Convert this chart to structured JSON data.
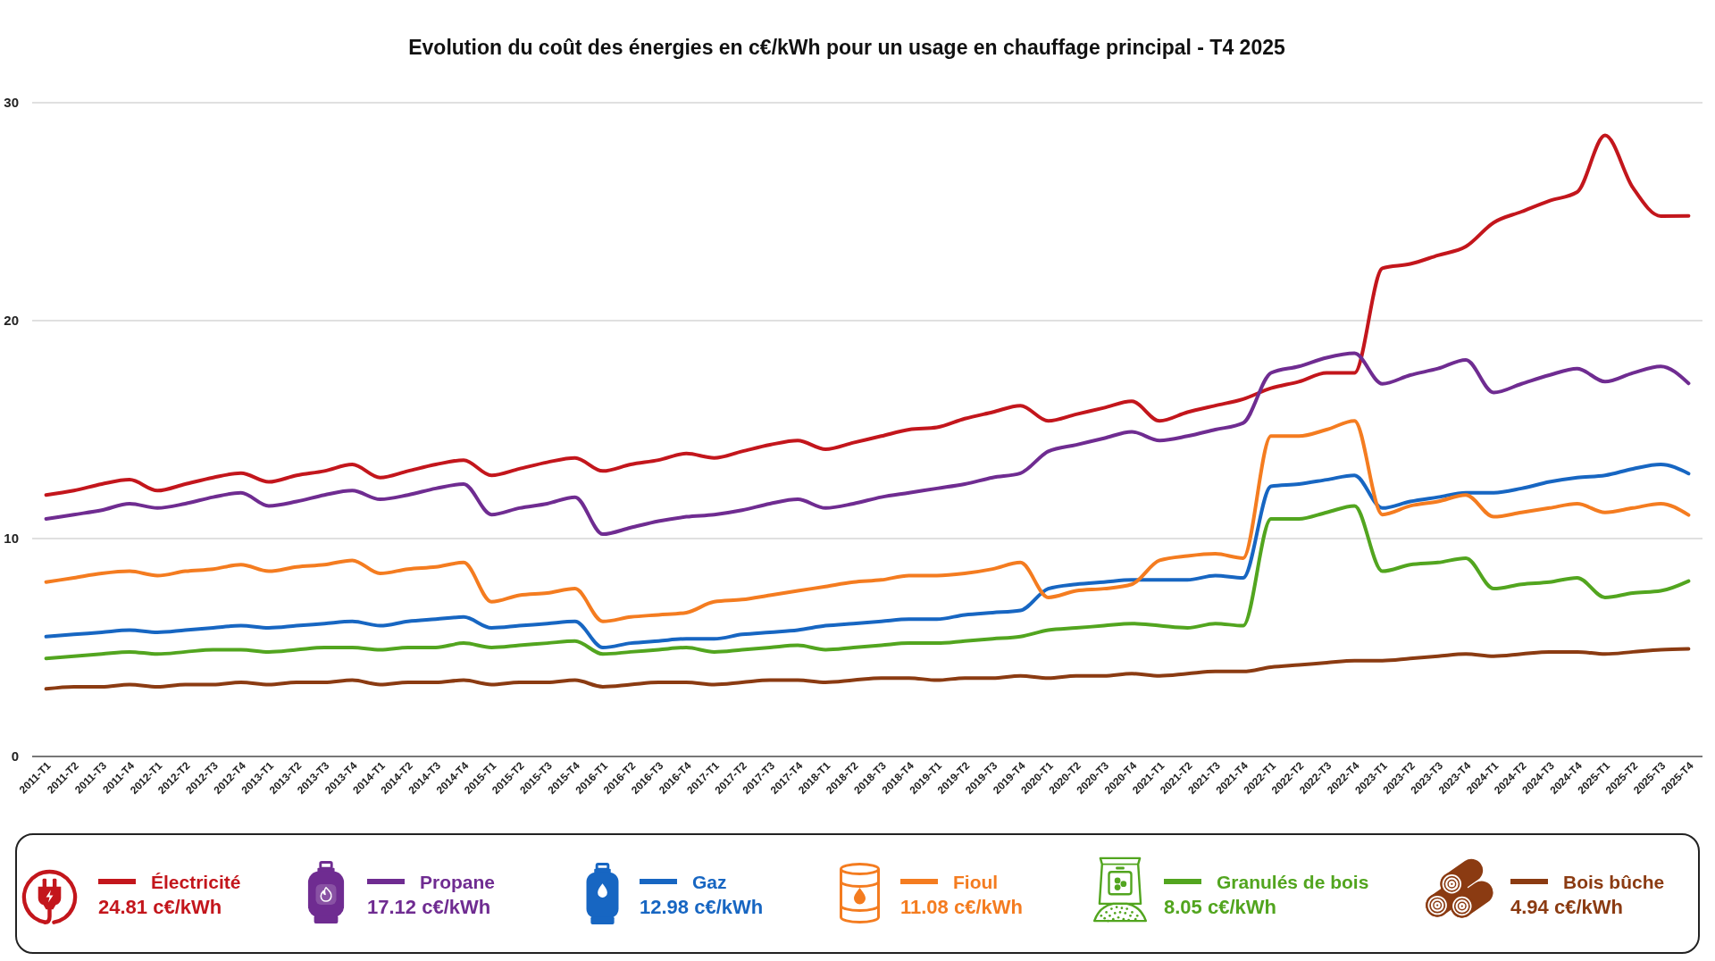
{
  "chart_data": {
    "type": "line",
    "title": "Evolution du coût des énergies en c€/kWh pour un usage en chauffage principal - T4 2025",
    "categories": [
      "2011-T1",
      "2011-T2",
      "2011-T3",
      "2011-T4",
      "2012-T1",
      "2012-T2",
      "2012-T3",
      "2012-T4",
      "2013-T1",
      "2013-T2",
      "2013-T3",
      "2013-T4",
      "2014-T1",
      "2014-T2",
      "2014-T3",
      "2014-T4",
      "2015-T1",
      "2015-T2",
      "2015-T3",
      "2015-T4",
      "2016-T1",
      "2016-T2",
      "2016-T3",
      "2016-T4",
      "2017-T1",
      "2017-T2",
      "2017-T3",
      "2017-T4",
      "2018-T1",
      "2018-T2",
      "2018-T3",
      "2018-T4",
      "2019-T1",
      "2019-T2",
      "2019-T3",
      "2019-T4",
      "2020-T1",
      "2020-T2",
      "2020-T3",
      "2020-T4",
      "2021-T1",
      "2021-T2",
      "2021-T3",
      "2021-T4",
      "2022-T1",
      "2022-T2",
      "2022-T3",
      "2022-T4",
      "2023-T1",
      "2023-T2",
      "2023-T3",
      "2023-T4",
      "2024-T1",
      "2024-T2",
      "2024-T3",
      "2024-T4",
      "2025-T1",
      "2025-T2",
      "2025-T3",
      "2025-T4"
    ],
    "series": [
      {
        "name": "Électricité",
        "color": "#c3161c",
        "values": [
          12.0,
          12.2,
          12.5,
          12.7,
          12.2,
          12.5,
          12.8,
          13.0,
          12.6,
          12.9,
          13.1,
          13.4,
          12.8,
          13.1,
          13.4,
          13.6,
          12.9,
          13.2,
          13.5,
          13.7,
          13.1,
          13.4,
          13.6,
          13.9,
          13.7,
          14.0,
          14.3,
          14.5,
          14.1,
          14.4,
          14.7,
          15.0,
          15.1,
          15.5,
          15.8,
          16.1,
          15.4,
          15.7,
          16.0,
          16.3,
          15.4,
          15.8,
          16.1,
          16.4,
          16.9,
          17.2,
          17.6,
          17.6,
          22.4,
          22.6,
          23.0,
          23.4,
          24.5,
          25.0,
          25.5,
          25.9,
          28.5,
          26.1,
          24.8,
          24.81
        ]
      },
      {
        "name": "Propane",
        "color": "#6f2c91",
        "values": [
          10.9,
          11.1,
          11.3,
          11.6,
          11.4,
          11.6,
          11.9,
          12.1,
          11.5,
          11.7,
          12.0,
          12.2,
          11.8,
          12.0,
          12.3,
          12.5,
          11.1,
          11.4,
          11.6,
          11.9,
          10.2,
          10.5,
          10.8,
          11.0,
          11.1,
          11.3,
          11.6,
          11.8,
          11.4,
          11.6,
          11.9,
          12.1,
          12.3,
          12.5,
          12.8,
          13.0,
          14.0,
          14.3,
          14.6,
          14.9,
          14.5,
          14.7,
          15.0,
          15.3,
          17.6,
          17.9,
          18.3,
          18.5,
          17.1,
          17.5,
          17.8,
          18.2,
          16.7,
          17.1,
          17.5,
          17.8,
          17.2,
          17.6,
          17.9,
          17.12
        ]
      },
      {
        "name": "Gaz",
        "color": "#1766c2",
        "values": [
          5.5,
          5.6,
          5.7,
          5.8,
          5.7,
          5.8,
          5.9,
          6.0,
          5.9,
          6.0,
          6.1,
          6.2,
          6.0,
          6.2,
          6.3,
          6.4,
          5.9,
          6.0,
          6.1,
          6.2,
          5.0,
          5.2,
          5.3,
          5.4,
          5.4,
          5.6,
          5.7,
          5.8,
          6.0,
          6.1,
          6.2,
          6.3,
          6.3,
          6.5,
          6.6,
          6.7,
          7.7,
          7.9,
          8.0,
          8.1,
          8.1,
          8.1,
          8.3,
          8.2,
          12.4,
          12.5,
          12.7,
          12.9,
          11.4,
          11.7,
          11.9,
          12.1,
          12.1,
          12.3,
          12.6,
          12.8,
          12.9,
          13.2,
          13.4,
          12.98
        ]
      },
      {
        "name": "Fioul",
        "color": "#f47c20",
        "values": [
          8.0,
          8.2,
          8.4,
          8.5,
          8.3,
          8.5,
          8.6,
          8.8,
          8.5,
          8.7,
          8.8,
          9.0,
          8.4,
          8.6,
          8.7,
          8.9,
          7.1,
          7.4,
          7.5,
          7.7,
          6.2,
          6.4,
          6.5,
          6.6,
          7.1,
          7.2,
          7.4,
          7.6,
          7.8,
          8.0,
          8.1,
          8.3,
          8.3,
          8.4,
          8.6,
          8.9,
          7.3,
          7.6,
          7.7,
          7.9,
          9.0,
          9.2,
          9.3,
          9.1,
          14.7,
          14.7,
          15.0,
          15.4,
          11.1,
          11.5,
          11.7,
          12.0,
          11.0,
          11.2,
          11.4,
          11.6,
          11.2,
          11.4,
          11.6,
          11.08
        ]
      },
      {
        "name": "Granulés de bois",
        "color": "#52a51f",
        "values": [
          4.5,
          4.6,
          4.7,
          4.8,
          4.7,
          4.8,
          4.9,
          4.9,
          4.8,
          4.9,
          5.0,
          5.0,
          4.9,
          5.0,
          5.0,
          5.2,
          5.0,
          5.1,
          5.2,
          5.3,
          4.7,
          4.8,
          4.9,
          5.0,
          4.8,
          4.9,
          5.0,
          5.1,
          4.9,
          5.0,
          5.1,
          5.2,
          5.2,
          5.3,
          5.4,
          5.5,
          5.8,
          5.9,
          6.0,
          6.1,
          6.0,
          5.9,
          6.1,
          6.0,
          10.9,
          10.9,
          11.2,
          11.5,
          8.5,
          8.8,
          8.9,
          9.1,
          7.7,
          7.9,
          8.0,
          8.2,
          7.3,
          7.5,
          7.6,
          8.05
        ]
      },
      {
        "name": "Bois bûche",
        "color": "#8b3b12",
        "values": [
          3.1,
          3.2,
          3.2,
          3.3,
          3.2,
          3.3,
          3.3,
          3.4,
          3.3,
          3.4,
          3.4,
          3.5,
          3.3,
          3.4,
          3.4,
          3.5,
          3.3,
          3.4,
          3.4,
          3.5,
          3.2,
          3.3,
          3.4,
          3.4,
          3.3,
          3.4,
          3.5,
          3.5,
          3.4,
          3.5,
          3.6,
          3.6,
          3.5,
          3.6,
          3.6,
          3.7,
          3.6,
          3.7,
          3.7,
          3.8,
          3.7,
          3.8,
          3.9,
          3.9,
          4.1,
          4.2,
          4.3,
          4.4,
          4.4,
          4.5,
          4.6,
          4.7,
          4.6,
          4.7,
          4.8,
          4.8,
          4.7,
          4.8,
          4.9,
          4.94
        ]
      }
    ],
    "ylim": [
      0,
      30
    ],
    "yticks": [
      0,
      10,
      20,
      30
    ],
    "grid": "y",
    "legend": "bottom",
    "annotations": [
      "24.81 c€/kWh",
      "17.12 c€/kWh",
      "12.98 c€/kWh",
      "11.08 c€/kWh",
      "8.05 c€/kWh",
      "4.94 c€/kWh"
    ]
  }
}
